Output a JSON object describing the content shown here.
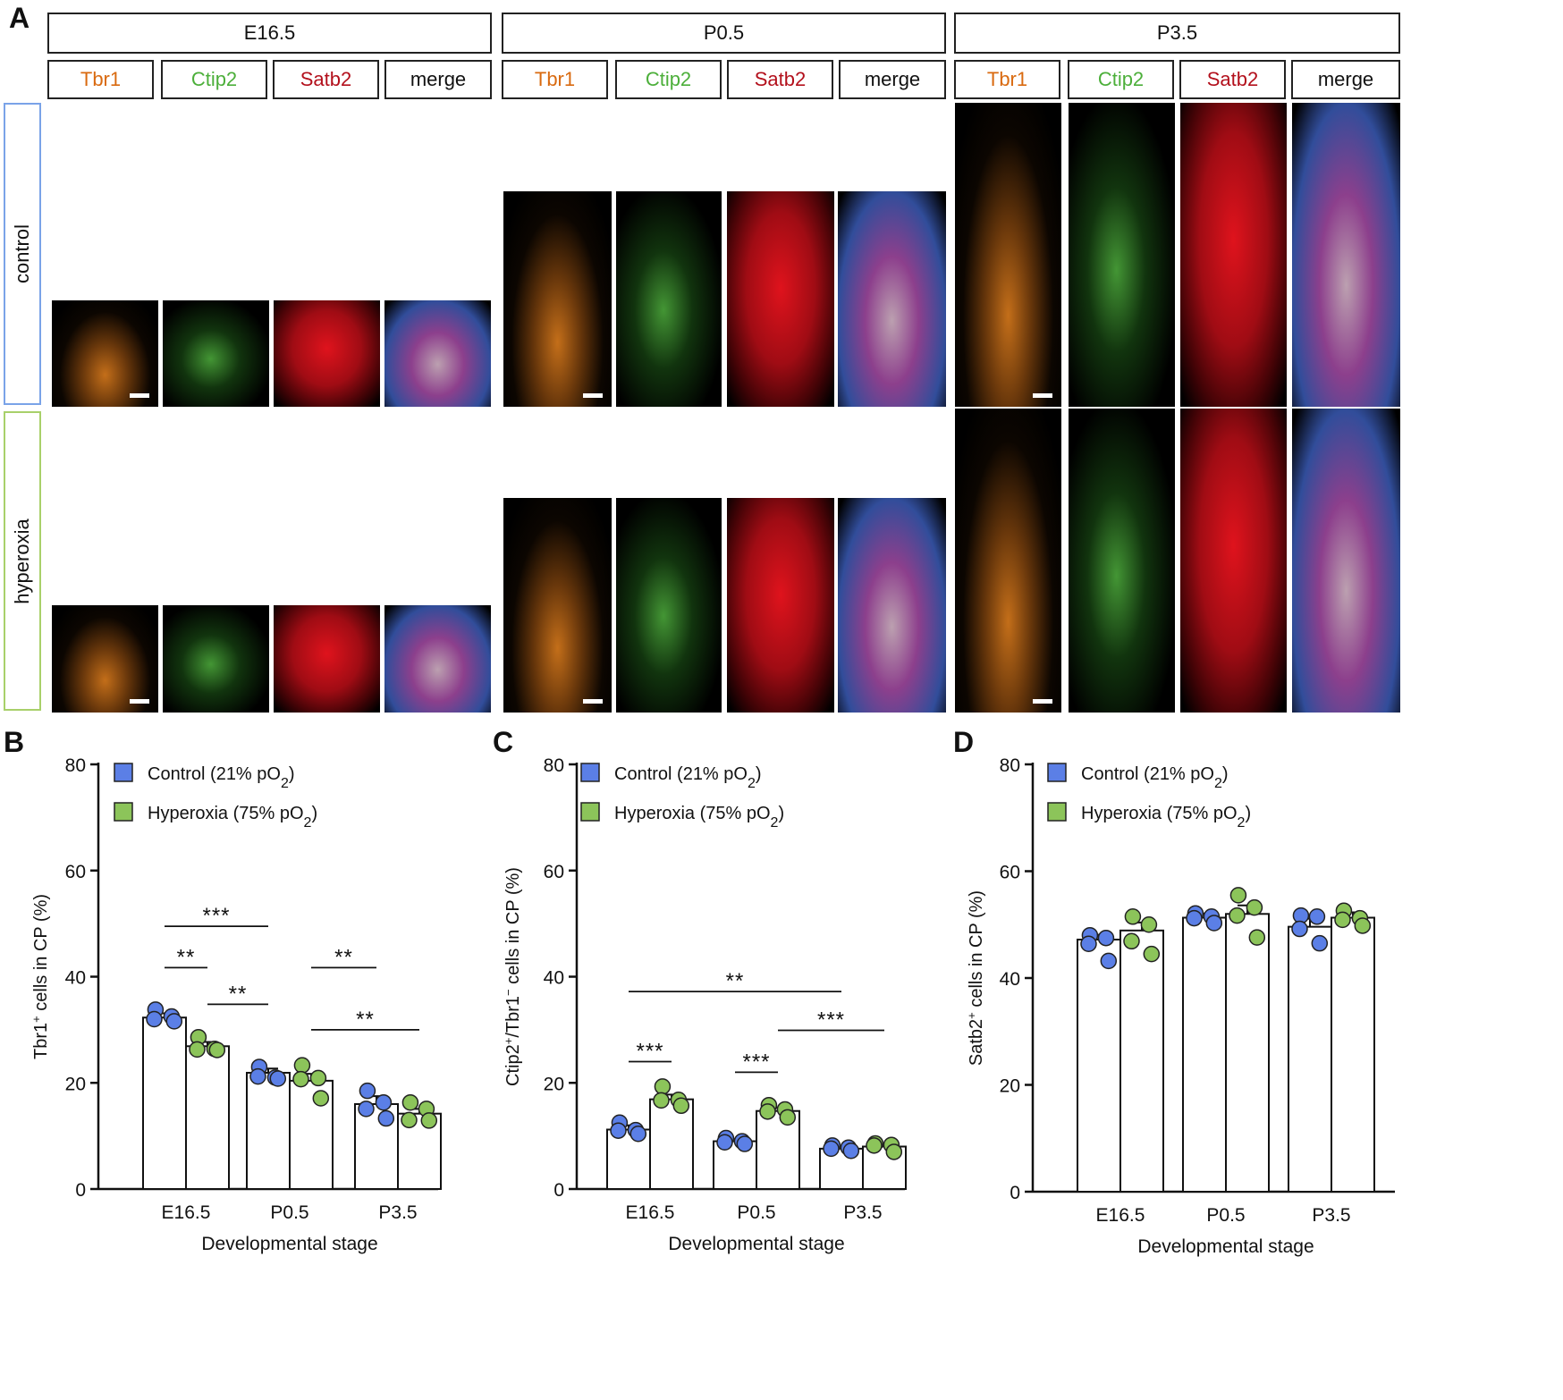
{
  "panels": {
    "a": "A",
    "b": "B",
    "c": "C",
    "d": "D"
  },
  "stages": [
    "E16.5",
    "P0.5",
    "P3.5"
  ],
  "markers": [
    {
      "name": "Tbr1",
      "color": "#d96a10"
    },
    {
      "name": "Ctip2",
      "color": "#4caf3a"
    },
    {
      "name": "Satb2",
      "color": "#b3101c"
    },
    {
      "name": "merge",
      "color": "#111111"
    }
  ],
  "conditions": [
    {
      "name": "control",
      "border": "#7aa3e8"
    },
    {
      "name": "hyperoxia",
      "border": "#a8d06a"
    }
  ],
  "colors": {
    "control": "#5b7fe6",
    "hyperoxia": "#8cc45a"
  },
  "chart_data": [
    {
      "type": "bar",
      "panel": "B",
      "ylabel_main": "Tbr1",
      "ylabel_sup": "+",
      "ylabel_rest": " cells in CP (%)",
      "xlabel": "Developmental stage",
      "categories": [
        "E16.5",
        "P0.5",
        "P3.5"
      ],
      "ylim": [
        0,
        80
      ],
      "yticks": [
        "0",
        "20",
        "40",
        "60",
        "80"
      ],
      "legend": {
        "placement": "top-left",
        "entries": [
          {
            "label": "Control (21% pO",
            "sub": "2",
            "close": ")"
          },
          {
            "label": "Hyperoxia (75% pO",
            "sub": "2",
            "close": ")"
          }
        ]
      },
      "series": [
        {
          "name": "Control (21% pO2)",
          "values": [
            32.3,
            21.9,
            16.0
          ],
          "sem": [
            0.8,
            0.8,
            1.5
          ],
          "points": [
            [
              33.8,
              32.5,
              32.0,
              31.6
            ],
            [
              23.0,
              21.0,
              21.2,
              20.8
            ],
            [
              18.5,
              16.3,
              15.1,
              13.3
            ]
          ]
        },
        {
          "name": "Hyperoxia (75% pO2)",
          "values": [
            26.9,
            20.4,
            14.2
          ],
          "sem": [
            0.8,
            1.3,
            0.9
          ],
          "points": [
            [
              28.6,
              26.4,
              26.3,
              26.2
            ],
            [
              23.3,
              20.9,
              20.7,
              17.1
            ],
            [
              16.3,
              15.1,
              13.0,
              12.9
            ]
          ]
        }
      ],
      "significance": [
        {
          "from": [
            0,
            0
          ],
          "to": [
            1,
            0
          ],
          "y": 49.5,
          "label": "***"
        },
        {
          "from": [
            0,
            0
          ],
          "to": [
            0,
            1
          ],
          "y": 41.7,
          "label": "**"
        },
        {
          "from": [
            1,
            1
          ],
          "to": [
            2,
            0
          ],
          "y": 41.7,
          "label": "**"
        },
        {
          "from": [
            0,
            1
          ],
          "to": [
            1,
            0
          ],
          "y": 34.8,
          "label": "**"
        },
        {
          "from": [
            1,
            1
          ],
          "to": [
            2,
            1
          ],
          "y": 30.0,
          "label": "**"
        }
      ]
    },
    {
      "type": "bar",
      "panel": "C",
      "ylabel_main": "Ctip2",
      "ylabel_sup": "+",
      "ylabel_mid": "/Tbr1",
      "ylabel_sup2": "−",
      "ylabel_rest": " cells in CP (%)",
      "xlabel": "Developmental stage",
      "categories": [
        "E16.5",
        "P0.5",
        "P3.5"
      ],
      "ylim": [
        0,
        80
      ],
      "yticks": [
        "0",
        "20",
        "40",
        "60",
        "80"
      ],
      "legend": {
        "placement": "top-left",
        "entries": [
          {
            "label": "Control (21% pO",
            "sub": "2",
            "close": ")"
          },
          {
            "label": "Hyperoxia (75% pO",
            "sub": "2",
            "close": ")"
          }
        ]
      },
      "series": [
        {
          "name": "Control (21% pO2)",
          "values": [
            11.2,
            9.0,
            7.6
          ],
          "sem": [
            0.8,
            0.4,
            0.4
          ],
          "points": [
            [
              12.5,
              11.1,
              11.0,
              10.4
            ],
            [
              9.6,
              9.0,
              8.8,
              8.5
            ],
            [
              8.2,
              7.8,
              7.6,
              7.2
            ]
          ]
        },
        {
          "name": "Hyperoxia (75% pO2)",
          "values": [
            16.9,
            14.7,
            8.0
          ],
          "sem": [
            0.9,
            0.6,
            0.3
          ],
          "points": [
            [
              19.3,
              16.8,
              16.7,
              15.7
            ],
            [
              15.8,
              15.0,
              14.6,
              13.5
            ],
            [
              8.6,
              8.3,
              8.2,
              7.0
            ]
          ]
        }
      ],
      "significance": [
        {
          "from": [
            0,
            0
          ],
          "to": [
            2,
            0
          ],
          "y": 37.2,
          "label": "**"
        },
        {
          "from": [
            1,
            1
          ],
          "to": [
            2,
            1
          ],
          "y": 29.9,
          "label": "***"
        },
        {
          "from": [
            0,
            0
          ],
          "to": [
            0,
            1
          ],
          "y": 24.0,
          "label": "***"
        },
        {
          "from": [
            1,
            0
          ],
          "to": [
            1,
            1
          ],
          "y": 22.0,
          "label": "***"
        }
      ]
    },
    {
      "type": "bar",
      "panel": "D",
      "ylabel_main": "Satb2",
      "ylabel_sup": "+",
      "ylabel_rest": " cells in CP (%)",
      "xlabel": "Developmental stage",
      "categories": [
        "E16.5",
        "P0.5",
        "P3.5"
      ],
      "ylim": [
        0,
        80
      ],
      "yticks": [
        "0",
        "20",
        "40",
        "60",
        "80"
      ],
      "legend": {
        "placement": "top-left",
        "entries": [
          {
            "label": "Control (21% pO",
            "sub": "2",
            "close": ")"
          },
          {
            "label": "Hyperoxia (75% pO",
            "sub": "2",
            "close": ")"
          }
        ]
      },
      "series": [
        {
          "name": "Control (21% pO2)",
          "values": [
            47.2,
            51.3,
            49.6
          ],
          "sem": [
            0.9,
            0.8,
            1.5
          ],
          "points": [
            [
              48.0,
              47.5,
              46.4,
              43.2
            ],
            [
              52.1,
              51.5,
              51.2,
              50.3
            ],
            [
              51.7,
              51.5,
              49.2,
              46.5
            ]
          ]
        },
        {
          "name": "Hyperoxia (75% pO2)",
          "values": [
            48.9,
            52.0,
            51.3
          ],
          "sem": [
            1.5,
            1.6,
            1.0
          ],
          "points": [
            [
              51.5,
              50.0,
              46.9,
              44.5
            ],
            [
              55.5,
              53.2,
              51.7,
              47.6
            ],
            [
              52.6,
              51.2,
              50.9,
              49.8
            ]
          ]
        }
      ],
      "significance": []
    }
  ]
}
